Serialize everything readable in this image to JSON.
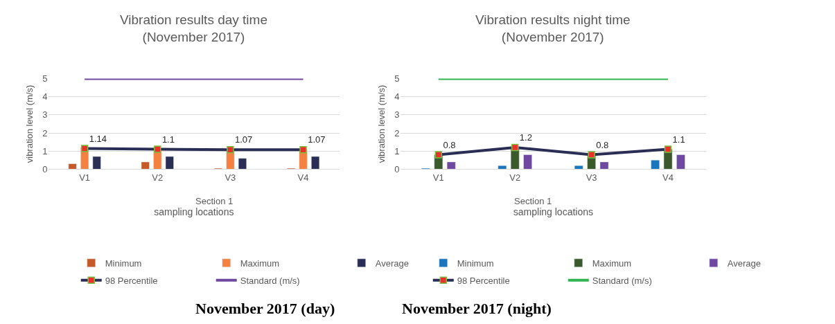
{
  "chart_data": [
    {
      "type": "bar",
      "title": "Vibration results day time",
      "subtitle": "(November 2017)",
      "xlabel": "sampling locations",
      "ylabel": "vibration level (m/s)",
      "categories": [
        "V1",
        "V2",
        "V3",
        "V4"
      ],
      "ylim": [
        0,
        5
      ],
      "yticks": [
        0,
        1,
        2,
        3,
        4,
        5
      ],
      "grid": "y",
      "legend": "bottom",
      "series": [
        {
          "name": "Minimum",
          "color": "#c55a28",
          "values": [
            0.3,
            0.4,
            0.05,
            0.05
          ]
        },
        {
          "name": "Maximum",
          "color": "#f4813f",
          "values": [
            1.2,
            1.1,
            1.1,
            1.1
          ]
        },
        {
          "name": "Average",
          "color": "#2a2e55",
          "values": [
            0.7,
            0.7,
            0.6,
            0.7
          ]
        },
        {
          "name": "98 Percentile",
          "type": "line",
          "marker": "square",
          "color": "#2a2e55",
          "values": [
            1.14,
            1.1,
            1.07,
            1.07
          ],
          "value_labels": [
            "1.14",
            "1.1",
            "1.07",
            "1.07"
          ]
        },
        {
          "name": "Standard (m/s)",
          "type": "line",
          "color": "#7048a0",
          "values": [
            5,
            5,
            5,
            5
          ]
        }
      ],
      "annotations": [
        "Section 1",
        "November 2017 (day)"
      ]
    },
    {
      "type": "bar",
      "title": "Vibration results night time",
      "subtitle": "(November 2017)",
      "xlabel": "sampling locations",
      "ylabel": "vibration level (m/s)",
      "categories": [
        "V1",
        "V2",
        "V3",
        "V4"
      ],
      "ylim": [
        0,
        5
      ],
      "yticks": [
        0,
        1,
        2,
        3,
        4,
        5
      ],
      "grid": "y",
      "legend": "bottom",
      "series": [
        {
          "name": "Minimum",
          "color": "#1b75bc",
          "values": [
            0.05,
            0.2,
            0.2,
            0.5
          ]
        },
        {
          "name": "Maximum",
          "color": "#3a5a2c",
          "values": [
            0.8,
            1.2,
            0.8,
            1.1
          ]
        },
        {
          "name": "Average",
          "color": "#6f48a0",
          "values": [
            0.4,
            0.8,
            0.4,
            0.8
          ]
        },
        {
          "name": "98 Percentile",
          "type": "line",
          "marker": "square",
          "color": "#2a2e55",
          "values": [
            0.8,
            1.2,
            0.8,
            1.1
          ],
          "value_labels": [
            "0.8",
            "1.2",
            "0.8",
            "1.1"
          ]
        },
        {
          "name": "Standard (m/s)",
          "type": "line",
          "color": "#2eb552",
          "values": [
            5,
            5,
            5,
            5
          ]
        }
      ],
      "annotations": [
        "Section 1",
        "November 2017 (night)"
      ]
    }
  ]
}
